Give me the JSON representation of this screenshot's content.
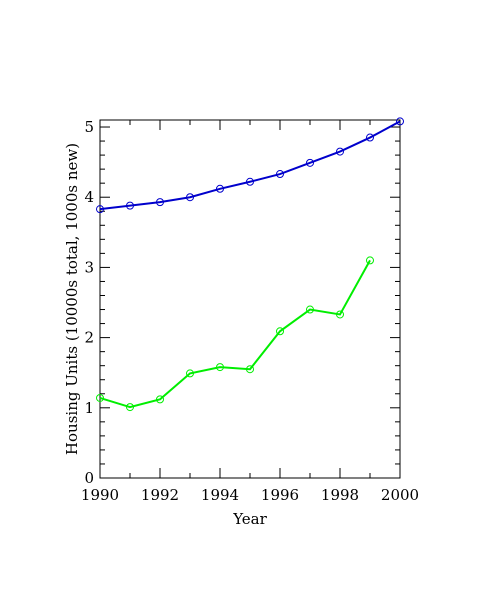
{
  "chart_data": {
    "type": "line",
    "xlabel": "Year",
    "ylabel": "Housing Units (10000s total, 1000s new)",
    "xlim": [
      1990,
      2000
    ],
    "ylim": [
      0,
      5.1
    ],
    "x_ticks": [
      1990,
      1992,
      1994,
      1996,
      1998,
      2000
    ],
    "y_ticks": [
      0,
      1,
      2,
      3,
      4,
      5
    ],
    "grid": false,
    "series": [
      {
        "color": "#0000cc",
        "x": [
          1990,
          1991,
          1992,
          1993,
          1994,
          1995,
          1996,
          1997,
          1998,
          1999,
          2000
        ],
        "y": [
          3.83,
          3.88,
          3.93,
          4.0,
          4.12,
          4.22,
          4.33,
          4.49,
          4.65,
          4.85,
          5.08
        ]
      },
      {
        "color": "#00ee00",
        "x": [
          1990,
          1991,
          1992,
          1993,
          1994,
          1995,
          1996,
          1997,
          1998,
          1999
        ],
        "y": [
          1.14,
          1.01,
          1.12,
          1.49,
          1.58,
          1.55,
          2.09,
          2.4,
          2.33,
          3.1
        ]
      }
    ]
  }
}
